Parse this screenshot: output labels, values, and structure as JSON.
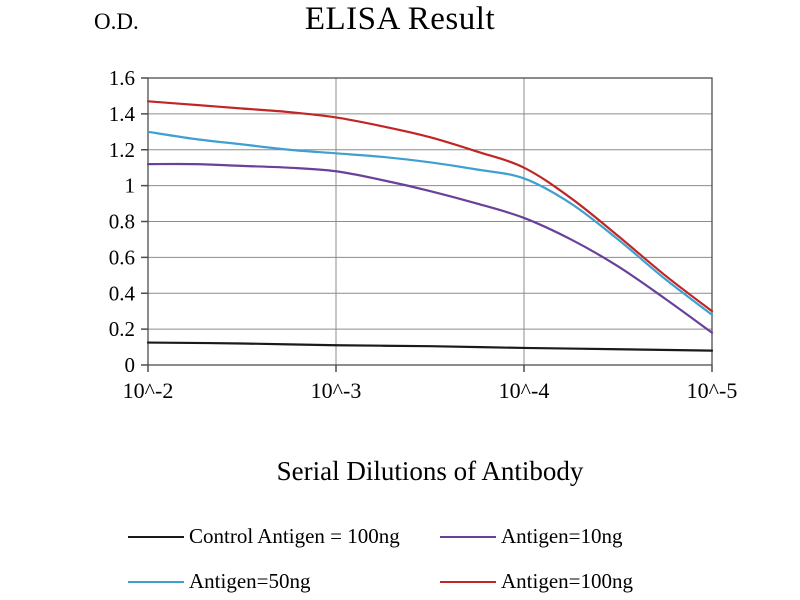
{
  "chart_data": {
    "type": "line",
    "title": "ELISA Result",
    "ylabel": "O.D.",
    "xlabel": "Serial Dilutions of Antibody",
    "x_tick_labels": [
      "10^-2",
      "10^-3",
      "10^-4",
      "10^-5"
    ],
    "y_ticks": [
      "0",
      "0.2",
      "0.4",
      "0.6",
      "0.8",
      "1",
      "1.2",
      "1.4",
      "1.6"
    ],
    "ylim": [
      0,
      1.6
    ],
    "grid": true,
    "legend_position": "bottom",
    "axis_color": "#4d4d4d",
    "grid_color": "#8c8c8c",
    "series": [
      {
        "name": "Control Antigen = 100ng",
        "color": "#1a1a1a",
        "x": [
          0,
          0.5,
          1,
          1.5,
          2,
          2.5,
          3
        ],
        "values": [
          0.125,
          0.12,
          0.11,
          0.105,
          0.095,
          0.088,
          0.08
        ]
      },
      {
        "name": "Antigen=10ng",
        "color": "#69409a",
        "x": [
          0,
          0.25,
          0.5,
          0.75,
          1,
          1.25,
          1.5,
          1.75,
          2,
          2.25,
          2.5,
          2.75,
          3
        ],
        "values": [
          1.12,
          1.12,
          1.11,
          1.1,
          1.08,
          1.03,
          0.97,
          0.9,
          0.82,
          0.7,
          0.55,
          0.37,
          0.18
        ]
      },
      {
        "name": "Antigen=50ng",
        "color": "#3fa0d0",
        "x": [
          0,
          0.25,
          0.5,
          0.75,
          1,
          1.25,
          1.5,
          1.75,
          2,
          2.25,
          2.5,
          2.75,
          3
        ],
        "values": [
          1.3,
          1.26,
          1.23,
          1.2,
          1.18,
          1.16,
          1.13,
          1.09,
          1.04,
          0.9,
          0.7,
          0.48,
          0.28
        ]
      },
      {
        "name": "Antigen=100ng",
        "color": "#c02626",
        "x": [
          0,
          0.25,
          0.5,
          0.75,
          1,
          1.25,
          1.5,
          1.75,
          2,
          2.25,
          2.5,
          2.75,
          3
        ],
        "values": [
          1.47,
          1.45,
          1.43,
          1.41,
          1.38,
          1.33,
          1.27,
          1.19,
          1.1,
          0.93,
          0.72,
          0.5,
          0.3
        ]
      }
    ]
  }
}
